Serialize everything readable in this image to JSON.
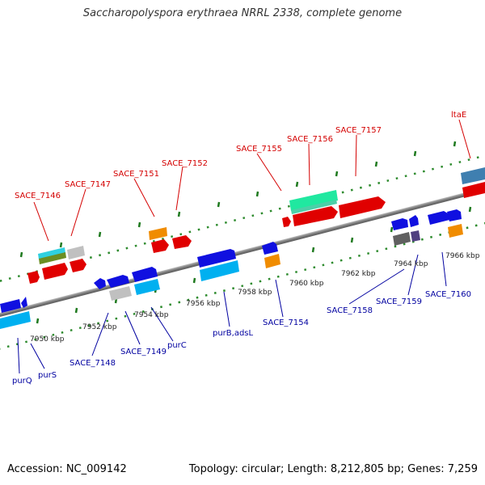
{
  "title": "Saccharopolyspora erythraea NRRL 2338, complete genome",
  "footer": {
    "accession": "Accession: NC_009142",
    "topology": "Topology: circular; Length: 8,212,805 bp; Genes: 7,259"
  },
  "ticks": [
    "7950 kbp",
    "7952 kbp",
    "7954 kbp",
    "7956 kbp",
    "7958 kbp",
    "7960 kbp",
    "7962 kbp",
    "7964 kbp",
    "7966 kbp"
  ],
  "upper_labels": [
    "SACE_7146",
    "SACE_7147",
    "SACE_7151",
    "SACE_7152",
    "SACE_7155",
    "SACE_7156",
    "SACE_7157",
    "ltaE"
  ],
  "lower_labels": [
    "purQ",
    "purS",
    "SACE_7148",
    "SACE_7149",
    "purC",
    "purB,adsL",
    "SACE_7154",
    "SACE_7158",
    "SACE_7159",
    "SACE_7160"
  ],
  "colors": {
    "backbone": "#8a8a8a",
    "upper_label": "#d40000",
    "lower_label": "#0000a0",
    "dots": "#2e8b2e"
  }
}
